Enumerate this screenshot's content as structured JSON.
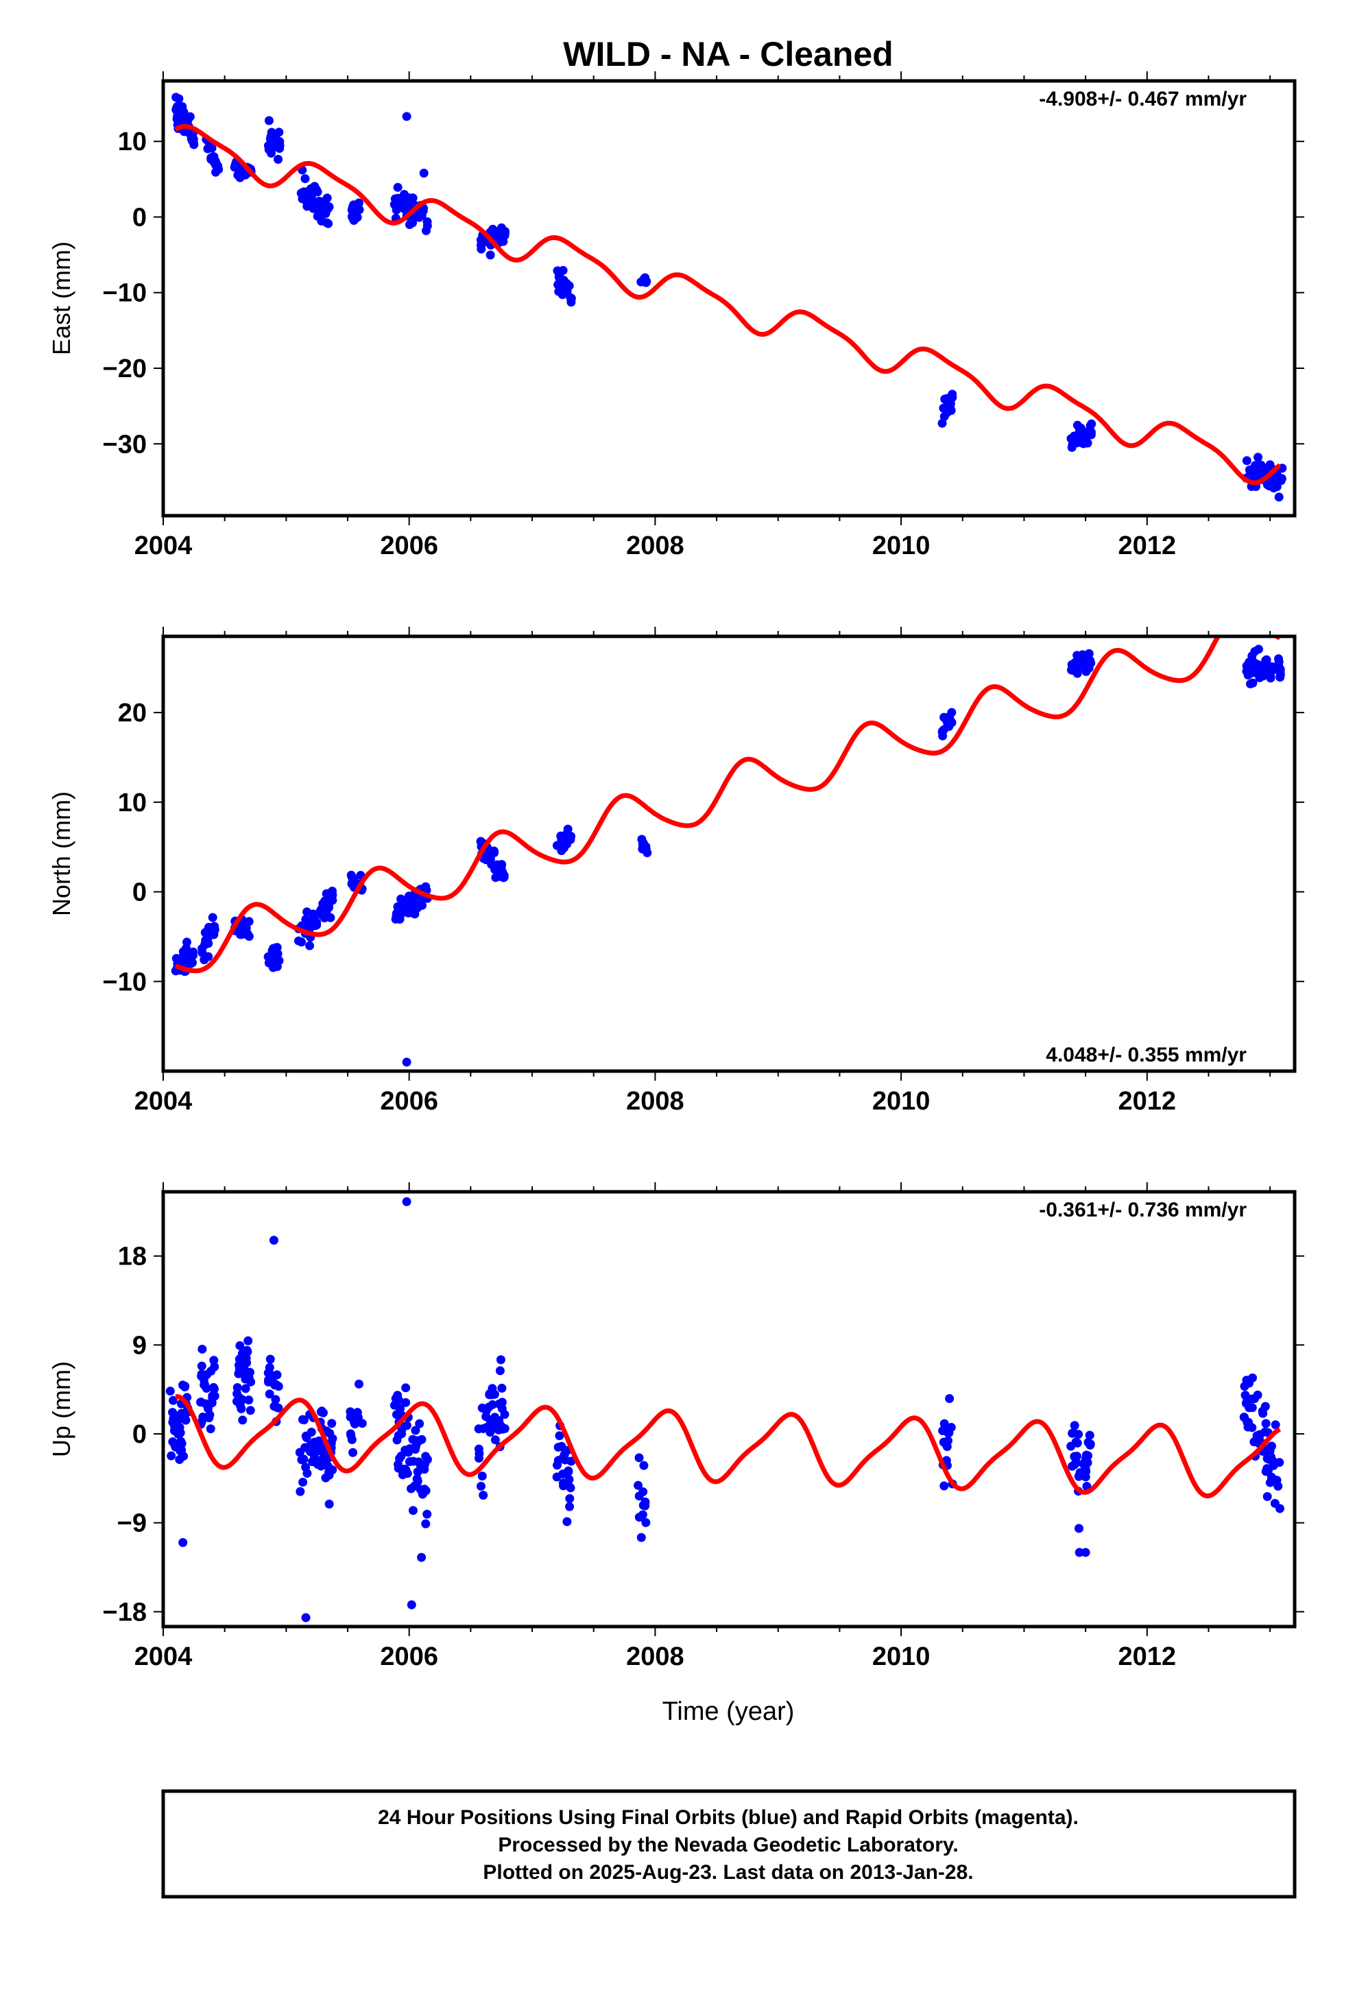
{
  "title": "WILD  - NA - Cleaned",
  "colors": {
    "data": "#0000ff",
    "model": "#ff0000",
    "frame": "#000000"
  },
  "chart_data": [
    {
      "type": "scatter",
      "ylabel": "East (mm)",
      "annotation": "-4.908+/- 0.467 mm/yr",
      "annotation_position": "top-right",
      "xlim": [
        2004.0,
        2013.2
      ],
      "ylim": [
        -39.5,
        18
      ],
      "xticks": [
        2004,
        2006,
        2008,
        2010,
        2012
      ],
      "yticks": [
        10,
        0,
        -10,
        -20,
        -30
      ],
      "ytick_labels": [
        "10",
        "0",
        "−10",
        "−20",
        "−30"
      ],
      "clusters": [
        {
          "start": 2004.1,
          "end": 2004.25,
          "start_mean": 14.5,
          "end_mean": 11.0,
          "spread": 1.3,
          "count": 45
        },
        {
          "start": 2004.35,
          "end": 2004.45,
          "start_mean": 9.5,
          "end_mean": 6.0,
          "spread": 1.2,
          "count": 24
        },
        {
          "start": 2004.58,
          "end": 2004.72,
          "start_mean": 6.5,
          "end_mean": 5.5,
          "spread": 0.8,
          "count": 16
        },
        {
          "start": 2004.85,
          "end": 2004.95,
          "start_mean": 10.5,
          "end_mean": 10.0,
          "spread": 1.0,
          "count": 20
        },
        {
          "start": 2005.12,
          "end": 2005.35,
          "start_mean": 4.0,
          "end_mean": 0.5,
          "spread": 1.4,
          "count": 40
        },
        {
          "start": 2005.52,
          "end": 2005.62,
          "start_mean": 1.0,
          "end_mean": 0.5,
          "spread": 1.0,
          "count": 14
        },
        {
          "start": 2005.88,
          "end": 2006.15,
          "start_mean": 2.0,
          "end_mean": 0.0,
          "spread": 1.4,
          "count": 48
        },
        {
          "start": 2006.58,
          "end": 2006.78,
          "start_mean": -3.5,
          "end_mean": -2.0,
          "spread": 0.9,
          "count": 30
        },
        {
          "start": 2007.2,
          "end": 2007.32,
          "start_mean": -8.0,
          "end_mean": -10.0,
          "spread": 1.1,
          "count": 20
        },
        {
          "start": 2007.88,
          "end": 2007.94,
          "start_mean": -8.0,
          "end_mean": -8.3,
          "spread": 0.6,
          "count": 8
        },
        {
          "start": 2010.33,
          "end": 2010.42,
          "start_mean": -26.0,
          "end_mean": -24.5,
          "spread": 1.2,
          "count": 14
        },
        {
          "start": 2011.38,
          "end": 2011.55,
          "start_mean": -29.5,
          "end_mean": -28.0,
          "spread": 1.0,
          "count": 28
        },
        {
          "start": 2012.8,
          "end": 2013.1,
          "start_mean": -34.0,
          "end_mean": -34.8,
          "spread": 1.2,
          "count": 60
        }
      ],
      "outliers": [
        {
          "x": 2005.98,
          "y": 13.3
        },
        {
          "x": 2006.12,
          "y": 5.8
        }
      ],
      "model": {
        "x_start": 2004.1,
        "x_end": 2013.08,
        "offset": 10.4,
        "rate": -4.908,
        "t0": 2004.1,
        "annual": [
          {
            "period": 1.0,
            "amp": 2.1,
            "phase": 0.3
          },
          {
            "period": 0.5,
            "amp": 0.6,
            "phase": 1.2
          }
        ]
      }
    },
    {
      "type": "scatter",
      "ylabel": "North (mm)",
      "annotation": "4.048+/- 0.355 mm/yr",
      "annotation_position": "bottom-right",
      "xlim": [
        2004.0,
        2013.2
      ],
      "ylim": [
        -20,
        28.5
      ],
      "xticks": [
        2004,
        2006,
        2008,
        2010,
        2012
      ],
      "yticks": [
        20,
        10,
        0,
        -10
      ],
      "ytick_labels": [
        "20",
        "10",
        "0",
        "−10"
      ],
      "clusters": [
        {
          "start": 2004.1,
          "end": 2004.25,
          "start_mean": -8.5,
          "end_mean": -7.0,
          "spread": 1.1,
          "count": 40
        },
        {
          "start": 2004.3,
          "end": 2004.42,
          "start_mean": -6.5,
          "end_mean": -4.0,
          "spread": 1.0,
          "count": 20
        },
        {
          "start": 2004.58,
          "end": 2004.7,
          "start_mean": -3.5,
          "end_mean": -4.5,
          "spread": 0.8,
          "count": 16
        },
        {
          "start": 2004.85,
          "end": 2004.95,
          "start_mean": -6.5,
          "end_mean": -7.5,
          "spread": 1.0,
          "count": 18
        },
        {
          "start": 2005.1,
          "end": 2005.38,
          "start_mean": -5.0,
          "end_mean": -1.0,
          "spread": 1.2,
          "count": 45
        },
        {
          "start": 2005.52,
          "end": 2005.62,
          "start_mean": 1.5,
          "end_mean": 0.5,
          "spread": 1.0,
          "count": 14
        },
        {
          "start": 2005.88,
          "end": 2006.15,
          "start_mean": -2.5,
          "end_mean": -0.5,
          "spread": 1.1,
          "count": 50
        },
        {
          "start": 2006.58,
          "end": 2006.78,
          "start_mean": 5.0,
          "end_mean": 2.0,
          "spread": 1.0,
          "count": 32
        },
        {
          "start": 2007.2,
          "end": 2007.32,
          "start_mean": 5.0,
          "end_mean": 6.0,
          "spread": 0.8,
          "count": 20
        },
        {
          "start": 2007.88,
          "end": 2007.94,
          "start_mean": 5.5,
          "end_mean": 4.8,
          "spread": 0.5,
          "count": 8
        },
        {
          "start": 2010.33,
          "end": 2010.42,
          "start_mean": 18.0,
          "end_mean": 19.5,
          "spread": 1.0,
          "count": 14
        },
        {
          "start": 2011.38,
          "end": 2011.55,
          "start_mean": 25.0,
          "end_mean": 26.0,
          "spread": 1.0,
          "count": 28
        },
        {
          "start": 2012.8,
          "end": 2013.1,
          "start_mean": 25.0,
          "end_mean": 25.0,
          "spread": 1.1,
          "count": 60
        }
      ],
      "outliers": [
        {
          "x": 2005.98,
          "y": -19.0
        }
      ],
      "model": {
        "x_start": 2004.1,
        "x_end": 2013.08,
        "offset": -7.0,
        "rate": 4.048,
        "t0": 2004.1,
        "annual": [
          {
            "period": 1.0,
            "amp": 2.7,
            "phase": 3.7
          },
          {
            "period": 0.5,
            "amp": 0.4,
            "phase": 0.5
          }
        ]
      }
    },
    {
      "type": "scatter",
      "ylabel": "Up (mm)",
      "xlabel": "Time (year)",
      "annotation": "-0.361+/- 0.736 mm/yr",
      "annotation_position": "top-right",
      "xlim": [
        2004.0,
        2013.2
      ],
      "ylim": [
        -19.5,
        24.5
      ],
      "xticks": [
        2004,
        2006,
        2008,
        2010,
        2012
      ],
      "yticks": [
        18,
        9,
        0,
        -9,
        -18
      ],
      "ytick_labels": [
        "18",
        "9",
        "0",
        "−9",
        "−18"
      ],
      "clusters": [
        {
          "start": 2004.05,
          "end": 2004.2,
          "start_mean": 1.5,
          "end_mean": 1.5,
          "spread": 3.5,
          "count": 40
        },
        {
          "start": 2004.3,
          "end": 2004.42,
          "start_mean": 4.5,
          "end_mean": 3.5,
          "spread": 2.5,
          "count": 28
        },
        {
          "start": 2004.58,
          "end": 2004.72,
          "start_mean": 6.5,
          "end_mean": 5.5,
          "spread": 3.0,
          "count": 30
        },
        {
          "start": 2004.85,
          "end": 2004.95,
          "start_mean": 6.0,
          "end_mean": 3.0,
          "spread": 3.0,
          "count": 18
        },
        {
          "start": 2005.1,
          "end": 2005.38,
          "start_mean": -2.0,
          "end_mean": -1.0,
          "spread": 3.0,
          "count": 60
        },
        {
          "start": 2005.52,
          "end": 2005.62,
          "start_mean": 1.0,
          "end_mean": 1.5,
          "spread": 2.0,
          "count": 14
        },
        {
          "start": 2005.88,
          "end": 2006.15,
          "start_mean": 1.0,
          "end_mean": -5.0,
          "spread": 3.5,
          "count": 60
        },
        {
          "start": 2006.55,
          "end": 2006.78,
          "start_mean": -1.0,
          "end_mean": 3.0,
          "spread": 3.5,
          "count": 40
        },
        {
          "start": 2007.2,
          "end": 2007.32,
          "start_mean": -2.0,
          "end_mean": -5.0,
          "spread": 2.5,
          "count": 24
        },
        {
          "start": 2007.86,
          "end": 2007.94,
          "start_mean": -5.0,
          "end_mean": -7.0,
          "spread": 3.0,
          "count": 12
        },
        {
          "start": 2010.33,
          "end": 2010.42,
          "start_mean": 0.0,
          "end_mean": -2.0,
          "spread": 3.0,
          "count": 16
        },
        {
          "start": 2011.38,
          "end": 2011.55,
          "start_mean": -3.0,
          "end_mean": -2.0,
          "spread": 3.0,
          "count": 34
        },
        {
          "start": 2012.78,
          "end": 2013.08,
          "start_mean": 5.5,
          "end_mean": -5.0,
          "spread": 3.0,
          "count": 55
        }
      ],
      "outliers": [
        {
          "x": 2005.98,
          "y": 23.5
        },
        {
          "x": 2004.9,
          "y": 19.6
        },
        {
          "x": 2005.16,
          "y": -18.6
        },
        {
          "x": 2006.02,
          "y": -17.3
        },
        {
          "x": 2004.16,
          "y": -11.0
        },
        {
          "x": 2011.45,
          "y": -12.0
        },
        {
          "x": 2011.5,
          "y": -12.0
        },
        {
          "x": 2006.1,
          "y": -12.5
        }
      ],
      "model": {
        "x_start": 2004.1,
        "x_end": 2013.08,
        "offset": 0.3,
        "rate": -0.361,
        "t0": 2004.1,
        "annual": [
          {
            "period": 1.0,
            "amp": 3.2,
            "phase": 1.9
          },
          {
            "period": 0.5,
            "amp": 0.8,
            "phase": 0.6
          }
        ]
      }
    }
  ],
  "footer": {
    "line1": "24 Hour Positions Using Final Orbits (blue) and Rapid Orbits (magenta).",
    "line2": "Processed by the Nevada Geodetic Laboratory.",
    "line3": "Plotted on 2025-Aug-23. Last data on 2013-Jan-28."
  }
}
